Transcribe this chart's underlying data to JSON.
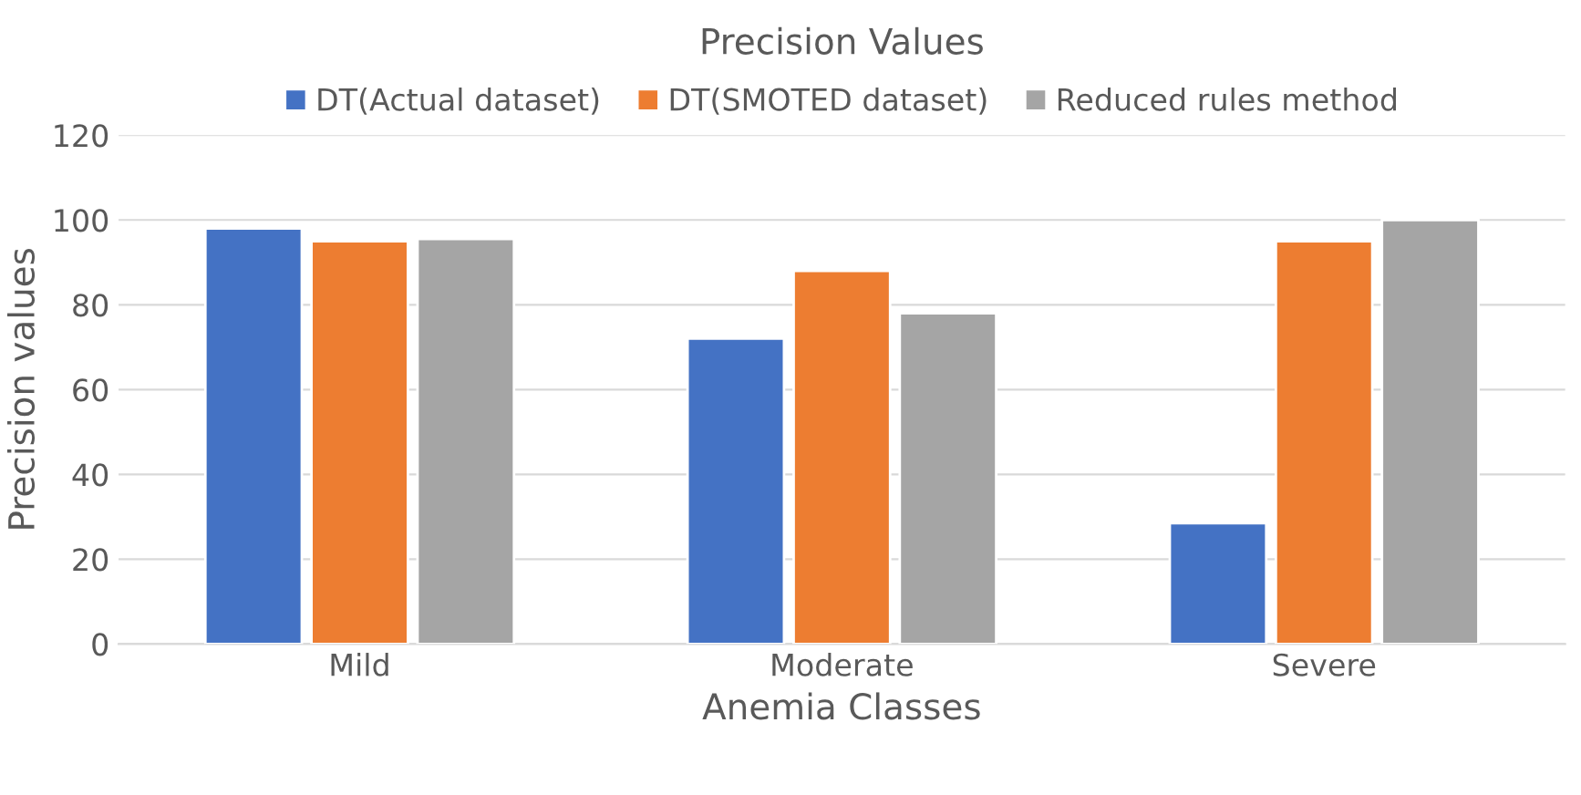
{
  "chart_data": {
    "type": "bar",
    "title": "Precision Values",
    "xlabel": "Anemia Classes",
    "ylabel": "Precision values",
    "categories": [
      "Mild",
      "Moderate",
      "Severe"
    ],
    "series": [
      {
        "name": "DT(Actual dataset)",
        "color": "#4472c4",
        "values": [
          98,
          72,
          28.5
        ]
      },
      {
        "name": "DT(SMOTED dataset)",
        "color": "#ed7d31",
        "values": [
          95,
          88,
          95
        ]
      },
      {
        "name": "Reduced rules method",
        "color": "#a5a5a5",
        "values": [
          95.5,
          78,
          100
        ]
      }
    ],
    "ylim": [
      0,
      120
    ],
    "yticks": [
      0,
      20,
      40,
      60,
      80,
      100,
      120
    ],
    "grid": "y",
    "legend": "top"
  }
}
